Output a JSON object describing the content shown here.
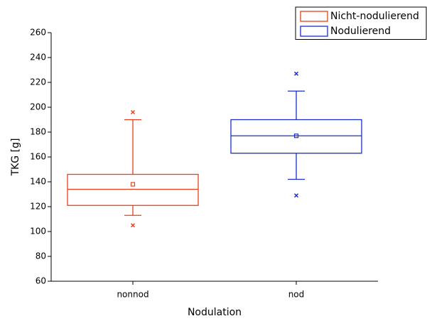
{
  "chart_data": {
    "type": "box",
    "x_label": "Nodulation",
    "y_label": "TKG [g]",
    "categories": [
      "nonnod",
      "nod"
    ],
    "ylim": [
      60,
      260
    ],
    "yticks": [
      60,
      80,
      100,
      120,
      140,
      160,
      180,
      200,
      220,
      240,
      260
    ],
    "legend": "top-right",
    "series": [
      {
        "name": "Nicht-nodulierend",
        "color": "#e8401c",
        "whisker_low": 113,
        "q1": 121,
        "median": 134,
        "q3": 146,
        "whisker_high": 190,
        "mean": 138,
        "outliers": [
          105,
          196
        ]
      },
      {
        "name": "Nodulierend",
        "color": "#1a2ecc",
        "whisker_low": 142,
        "q1": 163,
        "median": 177,
        "q3": 190,
        "whisker_high": 213,
        "mean": 177,
        "outliers": [
          129,
          227
        ]
      }
    ]
  }
}
